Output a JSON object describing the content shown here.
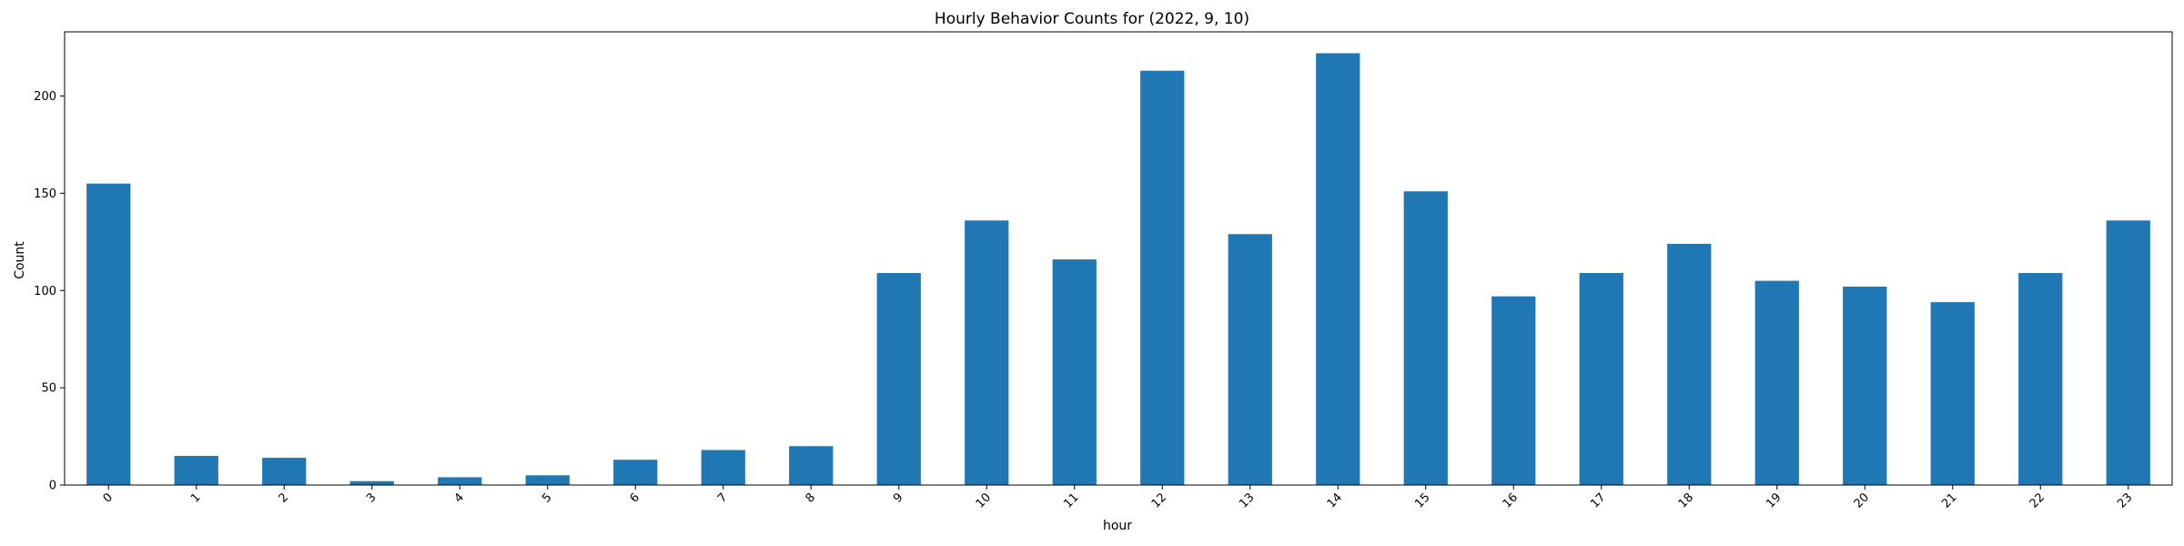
{
  "chart_data": {
    "type": "bar",
    "title": "Hourly Behavior Counts for (2022, 9, 10)",
    "xlabel": "hour",
    "ylabel": "Count",
    "categories": [
      "0",
      "1",
      "2",
      "3",
      "4",
      "5",
      "6",
      "7",
      "8",
      "9",
      "10",
      "11",
      "12",
      "13",
      "14",
      "15",
      "16",
      "17",
      "18",
      "19",
      "20",
      "21",
      "22",
      "23"
    ],
    "values": [
      155,
      15,
      14,
      2,
      4,
      5,
      13,
      18,
      20,
      109,
      136,
      116,
      213,
      129,
      222,
      151,
      97,
      109,
      124,
      105,
      102,
      94,
      109,
      136
    ],
    "ylim": [
      0,
      233
    ],
    "yticks": [
      "0",
      "50",
      "100",
      "150",
      "200"
    ],
    "xtick_rotation": 45,
    "grid": false,
    "legend": "none",
    "bar_color": "#1f77b4"
  }
}
